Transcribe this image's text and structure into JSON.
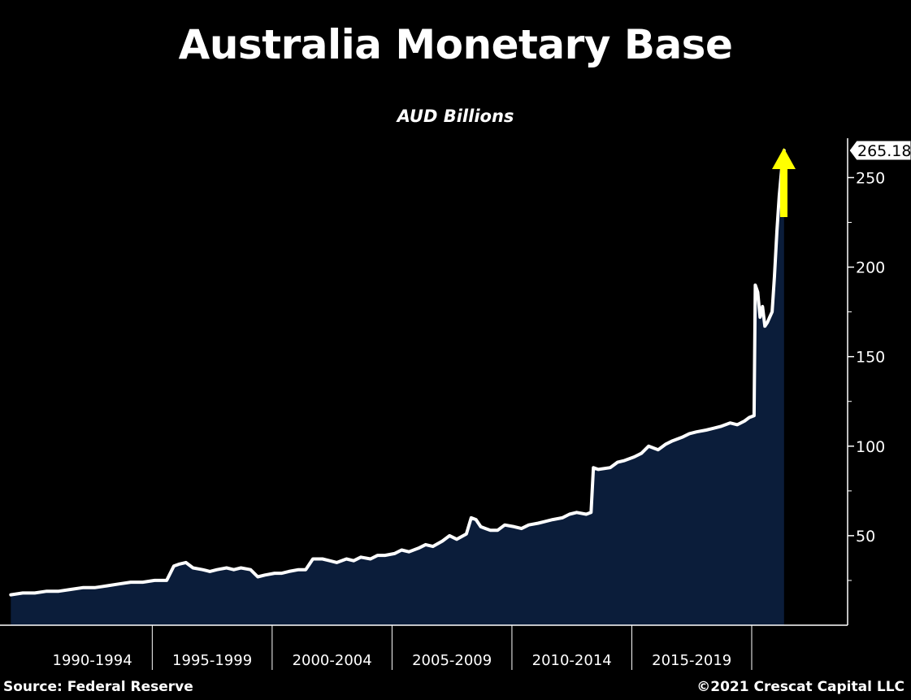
{
  "header": {
    "title": "Australia Monetary Base",
    "subtitle": "AUD Billions"
  },
  "footer": {
    "source": "Source: Federal Reserve",
    "copyright": "©2021 Crescat Capital LLC"
  },
  "colors": {
    "background": "#000000",
    "line": "#ffffff",
    "area_fill": "#0b1d3a",
    "arrow": "#ffff00",
    "axis": "#ffffff"
  },
  "annotation": {
    "arrow": "up-arrow-icon",
    "last_value_label": "265.18"
  },
  "chart_data": {
    "type": "area",
    "title": "Australia Monetary Base",
    "subtitle": "AUD Billions",
    "xlabel": "",
    "ylabel": "",
    "ylim": [
      0,
      272
    ],
    "y_axis_position": "right",
    "grid": false,
    "legend": "none",
    "x_period_labels": [
      "1990-1994",
      "1995-1999",
      "2000-2004",
      "2005-2009",
      "2010-2014",
      "2015-2019"
    ],
    "y_ticks": [
      50,
      100,
      150,
      200,
      250
    ],
    "last_value": 265.18,
    "series": [
      {
        "x": [
          1989.0,
          1989.5,
          1990.0,
          1990.5,
          1991.0,
          1991.5,
          1992.0,
          1992.5,
          1993.0,
          1993.5,
          1994.0,
          1994.5,
          1995.0,
          1995.5,
          1995.8,
          1996.0,
          1996.3,
          1996.6,
          1997.0,
          1997.3,
          1997.6,
          1998.0,
          1998.3,
          1998.6,
          1999.0,
          1999.3,
          1999.6,
          2000.0,
          2000.3,
          2000.6,
          2001.0,
          2001.3,
          2001.6,
          2002.0,
          2002.3,
          2002.6,
          2003.0,
          2003.3,
          2003.6,
          2004.0,
          2004.3,
          2004.6,
          2005.0,
          2005.3,
          2005.6,
          2006.0,
          2006.3,
          2006.6,
          2007.0,
          2007.3,
          2007.6,
          2008.0,
          2008.2,
          2008.4,
          2008.6,
          2008.8,
          2009.0,
          2009.3,
          2009.6,
          2010.0,
          2010.3,
          2010.6,
          2011.0,
          2011.3,
          2011.6,
          2012.0,
          2012.3,
          2012.6,
          2013.0,
          2013.2,
          2013.3,
          2013.5,
          2014.0,
          2014.3,
          2014.6,
          2015.0,
          2015.3,
          2015.6,
          2016.0,
          2016.3,
          2016.6,
          2017.0,
          2017.3,
          2017.6,
          2018.0,
          2018.3,
          2018.6,
          2019.0,
          2019.3,
          2019.6,
          2019.8,
          2020.0,
          2020.05,
          2020.15,
          2020.25,
          2020.35,
          2020.45,
          2020.55,
          2020.65,
          2020.75,
          2020.85,
          2020.95,
          2021.05,
          2021.15,
          2021.25
        ],
        "y": [
          17,
          18,
          18,
          19,
          19,
          20,
          21,
          21,
          22,
          23,
          24,
          24,
          25,
          25,
          33,
          34,
          35,
          32,
          31,
          30,
          31,
          32,
          31,
          32,
          31,
          27,
          28,
          29,
          29,
          30,
          31,
          31,
          37,
          37,
          36,
          35,
          37,
          36,
          38,
          37,
          39,
          39,
          40,
          42,
          41,
          43,
          45,
          44,
          47,
          50,
          48,
          51,
          60,
          59,
          55,
          54,
          53,
          53,
          56,
          55,
          54,
          56,
          57,
          58,
          59,
          60,
          62,
          63,
          62,
          63,
          88,
          87,
          88,
          91,
          92,
          94,
          96,
          100,
          98,
          101,
          103,
          105,
          107,
          108,
          109,
          110,
          111,
          113,
          112,
          114,
          116,
          117,
          190,
          186,
          172,
          178,
          167,
          169,
          172,
          175,
          195,
          220,
          240,
          255,
          265.18
        ]
      }
    ]
  }
}
